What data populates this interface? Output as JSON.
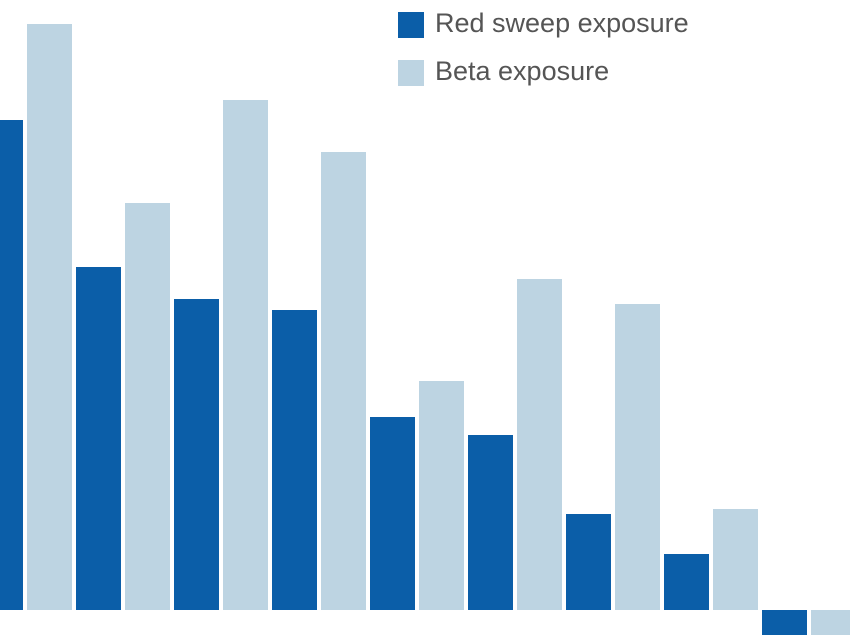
{
  "chart_data": {
    "type": "bar",
    "series": [
      {
        "name": "Red sweep exposure",
        "color": "#0b5ea8",
        "values": [
          49,
          34.3,
          31.1,
          30,
          19.3,
          17.5,
          9.6,
          5.6,
          -3
        ]
      },
      {
        "name": "Beta exposure",
        "color": "#bdd4e2",
        "values": [
          58.6,
          40.7,
          51,
          45.8,
          22.9,
          33.1,
          30.6,
          10.1,
          -3
        ]
      }
    ],
    "ylim": [
      -2.5,
      61
    ]
  }
}
